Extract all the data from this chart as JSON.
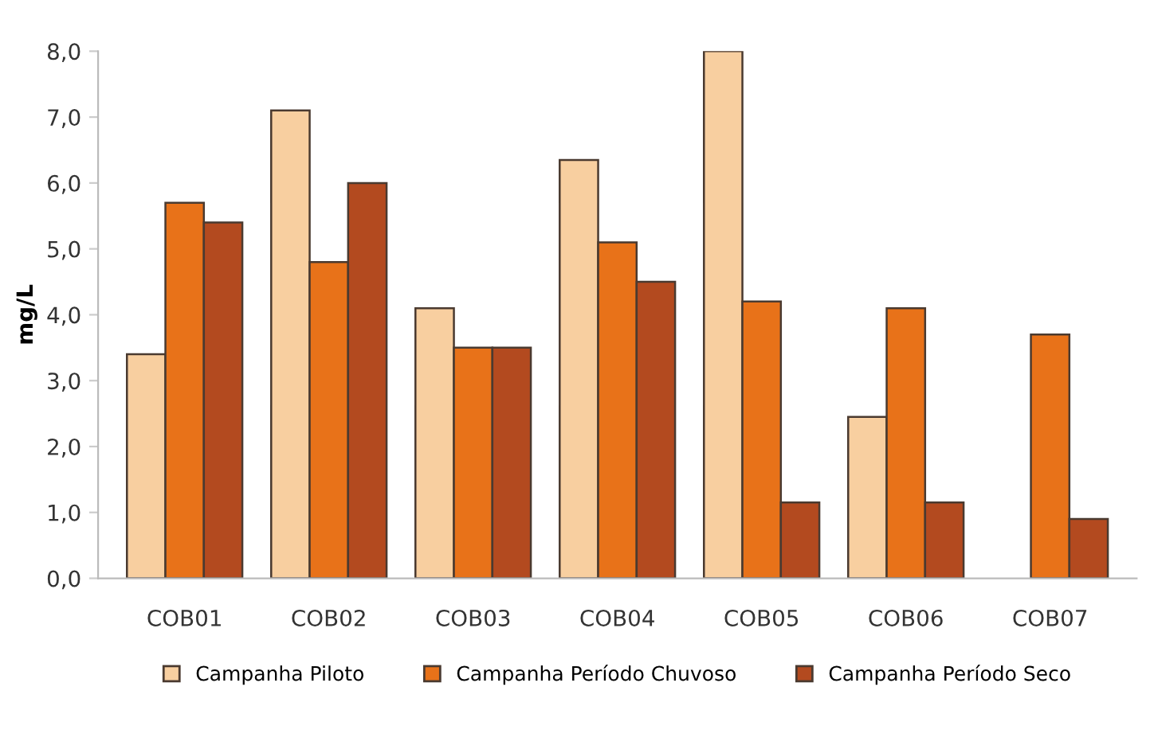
{
  "chart_data": {
    "type": "bar",
    "ylabel": "mg/L",
    "categories": [
      "COB01",
      "COB02",
      "COB03",
      "COB04",
      "COB05",
      "COB06",
      "COB07"
    ],
    "series": [
      {
        "name": "Campanha Piloto",
        "color": "#f8cfa0",
        "values": [
          3.4,
          7.1,
          4.1,
          6.35,
          8.0,
          2.45,
          null
        ]
      },
      {
        "name": "Campanha Período Chuvoso",
        "color": "#e87219",
        "values": [
          5.7,
          4.8,
          3.5,
          5.1,
          4.2,
          4.1,
          3.7
        ]
      },
      {
        "name": "Campanha Período Seco",
        "color": "#b34a1f",
        "values": [
          5.4,
          6.0,
          3.5,
          4.5,
          1.15,
          1.15,
          0.9
        ]
      }
    ],
    "ylim": [
      0,
      8
    ],
    "yticks": [
      {
        "value": 0,
        "label": "0,0"
      },
      {
        "value": 1,
        "label": "1,0"
      },
      {
        "value": 2,
        "label": "2,0"
      },
      {
        "value": 3,
        "label": "3,0"
      },
      {
        "value": 4,
        "label": "4,0"
      },
      {
        "value": 5,
        "label": "5,0"
      },
      {
        "value": 6,
        "label": "6,0"
      },
      {
        "value": 7,
        "label": "7,0"
      },
      {
        "value": 8,
        "label": "8,0"
      }
    ],
    "grid": false,
    "legend": "bottom"
  }
}
